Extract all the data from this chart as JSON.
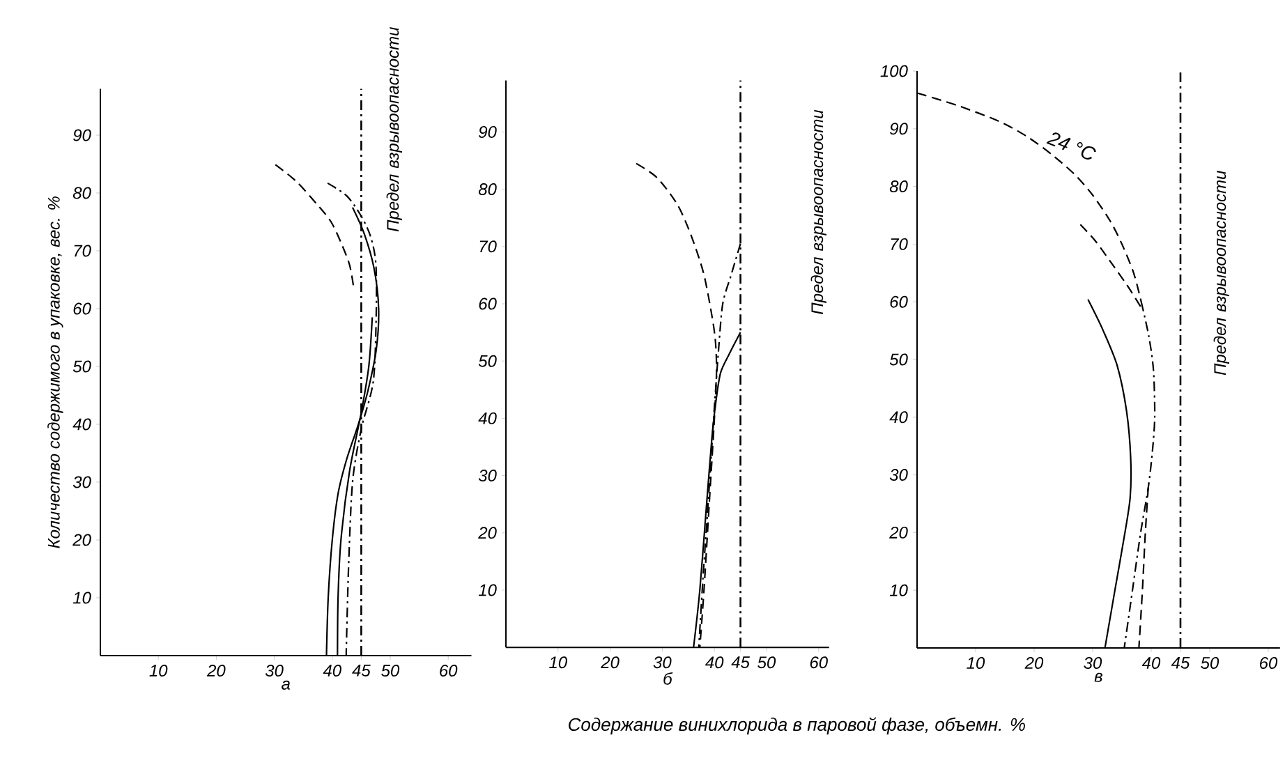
{
  "chart_data": [
    {
      "type": "line",
      "xlabel": "а",
      "ylabel": "Количество содержимого в упаковке, вес. %",
      "xlim": [
        0,
        64
      ],
      "ylim": [
        0,
        98
      ],
      "xticks": [
        10,
        20,
        30,
        40,
        45,
        50,
        60
      ],
      "yticks": [
        10,
        20,
        30,
        40,
        50,
        60,
        70,
        80,
        90
      ],
      "series": [
        {
          "color": "#000000",
          "line_style": "dashed",
          "x": [
            30.2,
            33.8,
            37.4,
            39.8,
            41.6,
            43.0,
            43.7
          ],
          "values": [
            84.9,
            82.0,
            78.0,
            75.0,
            71.2,
            67.5,
            63.6
          ]
        },
        {
          "color": "#000000",
          "line_style": "solid",
          "x": [
            43.5,
            45.5,
            47.2,
            48.0,
            47.6,
            46.2,
            44.5,
            42.5,
            41.0,
            40.0,
            39.3,
            39.0
          ],
          "values": [
            77.5,
            73,
            67,
            60,
            53,
            46,
            40,
            34,
            28,
            20,
            10,
            0
          ]
        },
        {
          "color": "#000000",
          "line_style": "solid",
          "x": [
            46.9,
            46.3,
            45,
            43,
            41.5,
            41,
            40.9
          ],
          "values": [
            58.5,
            50,
            42,
            32,
            20,
            10,
            0
          ]
        },
        {
          "color": "#000000",
          "line_style": "dashdot",
          "x": [
            39.2,
            42.5,
            45.0,
            46.6,
            47.5,
            47.6,
            47.1,
            45.0,
            43.5,
            42.8,
            42.4
          ],
          "values": [
            81.7,
            79.5,
            76,
            72.5,
            68,
            60,
            47.6,
            39.2,
            30,
            15,
            0
          ]
        }
      ],
      "ref_lines": [
        {
          "axis": "x",
          "value": 45,
          "label": "Предел взрывоопасности",
          "line_style": "dashdot",
          "color": "#000000"
        }
      ]
    },
    {
      "type": "line",
      "xlabel": "б",
      "xlim": [
        0,
        62
      ],
      "ylim": [
        0,
        99
      ],
      "xticks": [
        10,
        20,
        30,
        40,
        45,
        50,
        60
      ],
      "yticks": [
        10,
        20,
        30,
        40,
        50,
        60,
        70,
        80,
        90
      ],
      "series": [
        {
          "color": "#000000",
          "line_style": "dashed",
          "x": [
            25,
            29,
            32.9,
            35.5,
            37.9,
            39.5,
            40.2,
            40.4,
            40,
            39,
            38,
            37.2
          ],
          "values": [
            84.5,
            82,
            77.3,
            72,
            65.4,
            58,
            53.4,
            48,
            40,
            25,
            10,
            0
          ]
        },
        {
          "color": "#000000",
          "line_style": "solid",
          "x": [
            45,
            43,
            41.2,
            40.3,
            39.5,
            38.5,
            37.2,
            36
          ],
          "values": [
            55,
            51.5,
            48,
            43,
            36.4,
            25,
            10,
            0
          ]
        },
        {
          "color": "#000000",
          "line_style": "dashdot",
          "x": [
            45,
            43.2,
            41.6,
            40.8,
            40,
            39,
            37.8,
            37
          ],
          "values": [
            70.5,
            65,
            60,
            52,
            42,
            28,
            12,
            0
          ]
        }
      ],
      "ref_lines": [
        {
          "axis": "x",
          "value": 45,
          "label": "Предел взрывоопасности",
          "line_style": "dashdot",
          "color": "#000000"
        }
      ],
      "annotations": [
        "Содержание винихлорида в паровой фазе, объемн. %"
      ]
    },
    {
      "type": "line",
      "xlabel": "в",
      "xlim": [
        0,
        62
      ],
      "ylim": [
        0,
        100
      ],
      "xticks": [
        10,
        20,
        30,
        40,
        45,
        50,
        60
      ],
      "yticks": [
        10,
        20,
        30,
        40,
        50,
        60,
        70,
        80,
        90,
        100
      ],
      "series": [
        {
          "color": "#000000",
          "line_style": "dashed",
          "x": [
            0,
            7,
            14.2,
            19,
            23.3,
            27,
            30,
            33,
            35,
            37,
            38.3
          ],
          "values": [
            96.2,
            94,
            91.2,
            88.5,
            85.3,
            82,
            78.5,
            74,
            70,
            65,
            60
          ]
        },
        {
          "color": "#000000",
          "line_style": "dashdot",
          "x": [
            38.3,
            39.6,
            40.4,
            40.6,
            40.2,
            39.5,
            38.2,
            36.8,
            35.4
          ],
          "values": [
            60,
            54,
            48,
            40,
            34,
            27.8,
            20,
            10,
            0
          ]
        },
        {
          "color": "#000000",
          "line_style": "dashed",
          "x": [
            39.5,
            39,
            38.5,
            37.9
          ],
          "values": [
            27.8,
            20,
            10,
            0
          ]
        },
        {
          "color": "#000000",
          "line_style": "dashed",
          "x": [
            27.9,
            30.5,
            33,
            35.8,
            38.3
          ],
          "values": [
            73.4,
            70.5,
            67,
            63,
            59
          ]
        },
        {
          "color": "#000000",
          "line_style": "solid",
          "x": [
            29.2,
            31.8,
            34.2,
            35.8,
            36.5,
            36.4,
            35.4,
            33.8,
            32.1
          ],
          "values": [
            60.4,
            55,
            48.9,
            41,
            32.8,
            26,
            19.3,
            10,
            0
          ]
        }
      ],
      "ref_lines": [
        {
          "axis": "x",
          "value": 45,
          "label": "Предел взрывоопасности",
          "line_style": "dashdot",
          "color": "#000000"
        }
      ],
      "annotations": [
        {
          "text": "24 °C",
          "x": 21,
          "y": 87
        }
      ]
    }
  ]
}
